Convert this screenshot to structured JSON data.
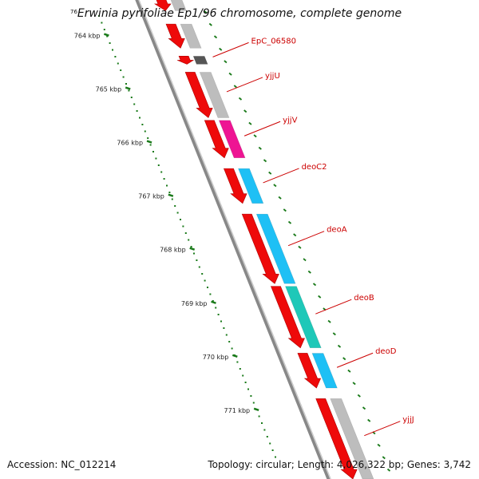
{
  "title": "Erwinia pyrifoliae Ep1/96 chromosome, complete genome",
  "footer": {
    "accession": "Accession: NC_012214",
    "summary": "Topology: circular; Length: 4,026,322 bp; Genes: 3,742"
  },
  "colors": {
    "gene": "#ee0a0a",
    "backbone": "#888888",
    "scale": "#1a7a1a",
    "label": "#cc0000",
    "cog_gray": "#bdbdbd",
    "cog_dark": "#555555",
    "cog_magenta": "#ee1493",
    "cog_blue": "#1ec0f5",
    "cog_teal": "#1ec8b8"
  },
  "chart_data": {
    "type": "genome-map",
    "view_start_kbp": 763.5,
    "view_end_kbp": 772.3,
    "scale_ticks": [
      {
        "label": "764 kbp",
        "kbp": 764
      },
      {
        "label": "765 kbp",
        "kbp": 765
      },
      {
        "label": "766 kbp",
        "kbp": 766
      },
      {
        "label": "767 kbp",
        "kbp": 767
      },
      {
        "label": "768 kbp",
        "kbp": 768
      },
      {
        "label": "769 kbp",
        "kbp": 769
      },
      {
        "label": "770 kbp",
        "kbp": 770
      },
      {
        "label": "771 kbp",
        "kbp": 771
      }
    ],
    "genes": [
      {
        "name": "",
        "start": 763.3,
        "end": 763.55,
        "cog": "cog_gray"
      },
      {
        "name": "",
        "start": 763.8,
        "end": 764.25,
        "cog": "cog_gray"
      },
      {
        "name": "EpC_06580",
        "start": 764.4,
        "end": 764.55,
        "cog": "cog_dark"
      },
      {
        "name": "yjjU",
        "start": 764.7,
        "end": 765.55,
        "cog": "cog_gray"
      },
      {
        "name": "yjjV",
        "start": 765.6,
        "end": 766.3,
        "cog": "cog_magenta"
      },
      {
        "name": "deoC2",
        "start": 766.5,
        "end": 767.15,
        "cog": "cog_blue"
      },
      {
        "name": "deoA",
        "start": 767.35,
        "end": 768.65,
        "cog": "cog_blue"
      },
      {
        "name": "deoB",
        "start": 768.7,
        "end": 769.85,
        "cog": "cog_teal"
      },
      {
        "name": "deoD",
        "start": 769.95,
        "end": 770.6,
        "cog": "cog_blue"
      },
      {
        "name": "yjjJ",
        "start": 770.8,
        "end": 772.3,
        "cog": "cog_gray"
      }
    ]
  }
}
